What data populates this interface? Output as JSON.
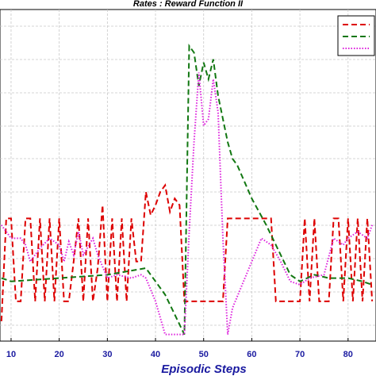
{
  "chart_data": {
    "type": "line",
    "title": "Rates : Reward Function II",
    "xlabel": "Episodic Steps",
    "xlim": [
      7.7,
      85.8
    ],
    "ylim": [
      0,
      1
    ],
    "xticks": [
      10,
      20,
      30,
      40,
      50,
      60,
      70,
      80
    ],
    "grid": true,
    "legend": "upper right",
    "series": [
      {
        "color": "#dd0000",
        "style": "dashed",
        "x": [
          8,
          9,
          10,
          11,
          12,
          13,
          14,
          15,
          16,
          17,
          18,
          19,
          20,
          21,
          22,
          23,
          24,
          25,
          26,
          27,
          28,
          29,
          30,
          31,
          32,
          33,
          34,
          35,
          36,
          37,
          38,
          39,
          40,
          41,
          42,
          43,
          44,
          45,
          46,
          47,
          48,
          49,
          50,
          51,
          52,
          53,
          54,
          55,
          56,
          57,
          58,
          59,
          60,
          61,
          62,
          63,
          64,
          65,
          66,
          67,
          68,
          69,
          70,
          71,
          72,
          73,
          74,
          75,
          76,
          77,
          78,
          79,
          80,
          81,
          82,
          83,
          84,
          85
        ],
        "values": [
          0.06,
          0.37,
          0.37,
          0.12,
          0.12,
          0.37,
          0.37,
          0.12,
          0.37,
          0.12,
          0.37,
          0.12,
          0.37,
          0.12,
          0.12,
          0.24,
          0.37,
          0.12,
          0.37,
          0.12,
          0.22,
          0.41,
          0.12,
          0.37,
          0.12,
          0.37,
          0.12,
          0.37,
          0.24,
          0.24,
          0.45,
          0.38,
          0.41,
          0.45,
          0.47,
          0.39,
          0.43,
          0.41,
          0.12,
          0.12,
          0.12,
          0.12,
          0.12,
          0.12,
          0.12,
          0.12,
          0.12,
          0.37,
          0.37,
          0.37,
          0.37,
          0.37,
          0.37,
          0.37,
          0.37,
          0.37,
          0.37,
          0.12,
          0.12,
          0.12,
          0.12,
          0.12,
          0.12,
          0.37,
          0.12,
          0.37,
          0.12,
          0.12,
          0.12,
          0.37,
          0.37,
          0.12,
          0.37,
          0.12,
          0.37,
          0.12,
          0.37,
          0.12
        ]
      },
      {
        "color": "#117711",
        "style": "dashed",
        "x": [
          8,
          10,
          20,
          30,
          38,
          42,
          45,
          46,
          47,
          48,
          49,
          50,
          51,
          52,
          53,
          54,
          55,
          56,
          57,
          60,
          63,
          66,
          68,
          70,
          73,
          76,
          80,
          83,
          85
        ],
        "values": [
          0.19,
          0.18,
          0.19,
          0.2,
          0.22,
          0.14,
          0.05,
          0.02,
          0.89,
          0.87,
          0.77,
          0.84,
          0.79,
          0.85,
          0.74,
          0.67,
          0.6,
          0.55,
          0.53,
          0.43,
          0.35,
          0.26,
          0.2,
          0.18,
          0.2,
          0.19,
          0.19,
          0.18,
          0.17
        ]
      },
      {
        "color": "#dd22dd",
        "style": "dotted",
        "x": [
          8,
          9,
          10,
          12,
          13,
          14,
          16,
          18,
          20,
          21,
          22,
          23,
          24,
          25,
          27,
          28,
          30,
          32,
          35,
          37,
          38,
          40,
          42,
          46,
          47,
          48,
          49,
          50,
          51,
          52,
          53,
          54,
          55,
          56,
          58,
          60,
          62,
          64,
          66,
          68,
          70,
          72,
          75,
          77,
          79,
          80,
          82,
          84,
          85
        ],
        "values": [
          0.35,
          0.33,
          0.31,
          0.31,
          0.29,
          0.24,
          0.28,
          0.31,
          0.29,
          0.24,
          0.3,
          0.26,
          0.33,
          0.26,
          0.31,
          0.26,
          0.19,
          0.2,
          0.19,
          0.2,
          0.19,
          0.12,
          0.02,
          0.02,
          0.33,
          0.6,
          0.81,
          0.65,
          0.67,
          0.79,
          0.69,
          0.31,
          0.02,
          0.1,
          0.17,
          0.24,
          0.31,
          0.29,
          0.24,
          0.18,
          0.17,
          0.19,
          0.2,
          0.31,
          0.29,
          0.31,
          0.33,
          0.31,
          0.35
        ]
      }
    ]
  }
}
